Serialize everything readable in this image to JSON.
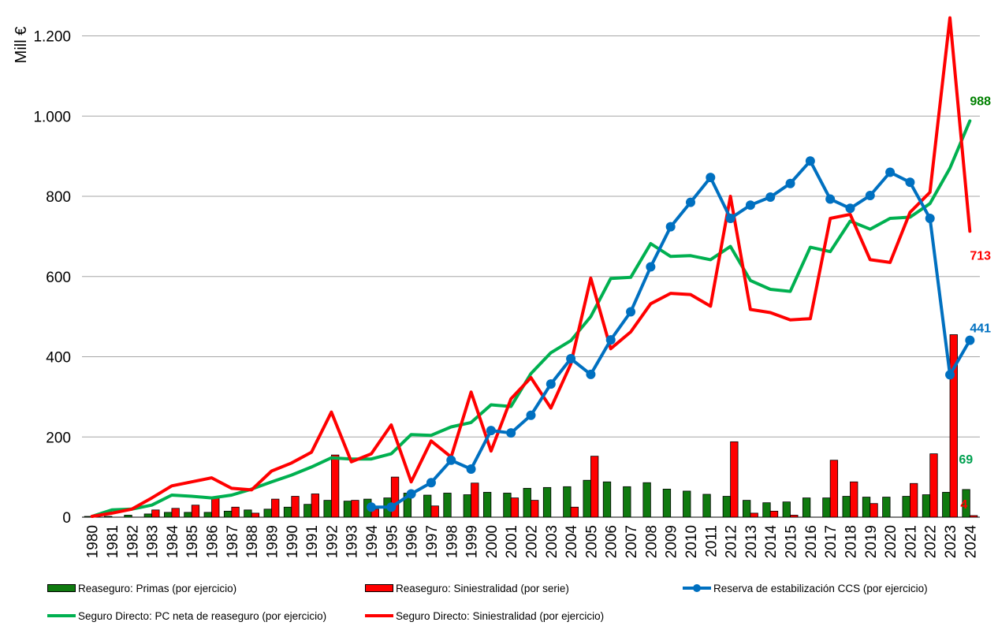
{
  "chart_data": {
    "type": "bar",
    "ylabel": "Mill €",
    "ylim": [
      0,
      1200
    ],
    "yticks": [
      {
        "value": 0,
        "label": "0"
      },
      {
        "value": 200,
        "label": "200"
      },
      {
        "value": 400,
        "label": "400"
      },
      {
        "value": 600,
        "label": "600"
      },
      {
        "value": 800,
        "label": "800"
      },
      {
        "value": 1000,
        "label": "1.000"
      },
      {
        "value": 1200,
        "label": "1.200"
      }
    ],
    "grid": true,
    "legend_position": "bottom",
    "categories": [
      "1980",
      "1981",
      "1982",
      "1983",
      "1984",
      "1985",
      "1986",
      "1987",
      "1988",
      "1989",
      "1990",
      "1991",
      "1992",
      "1993",
      "1994",
      "1995",
      "1996",
      "1997",
      "1998",
      "1999",
      "2000",
      "2001",
      "2002",
      "2003",
      "2004",
      "2005",
      "2006",
      "2007",
      "2008",
      "2009",
      "2010",
      "2011",
      "2012",
      "2013",
      "2014",
      "2015",
      "2016",
      "2017",
      "2018",
      "2019",
      "2020",
      "2021",
      "2022",
      "2023",
      "2024"
    ],
    "series": [
      {
        "name": "Reaseguro: Primas (por ejercicio)",
        "kind": "bar",
        "color": "#0f7a0f",
        "values": [
          2,
          2,
          5,
          8,
          12,
          12,
          12,
          15,
          18,
          20,
          25,
          32,
          42,
          40,
          45,
          48,
          60,
          55,
          60,
          56,
          62,
          60,
          72,
          74,
          76,
          92,
          88,
          76,
          86,
          70,
          65,
          57,
          52,
          42,
          36,
          38,
          48,
          48,
          52,
          50,
          50,
          52,
          56,
          62,
          69
        ]
      },
      {
        "name": "Reaseguro: Siniestralidad (por serie)",
        "kind": "bar",
        "color": "#ff0000",
        "values": [
          0,
          0,
          0,
          18,
          22,
          30,
          50,
          25,
          10,
          45,
          52,
          58,
          155,
          42,
          20,
          100,
          0,
          28,
          0,
          85,
          0,
          48,
          42,
          0,
          25,
          152,
          0,
          0,
          0,
          0,
          0,
          0,
          188,
          10,
          15,
          5,
          0,
          142,
          88,
          34,
          0,
          84,
          158,
          455,
          4
        ]
      },
      {
        "name": "Reserva de estabilización CCS (por ejercicio)",
        "kind": "line-markers",
        "color": "#0070c0",
        "values": [
          null,
          null,
          null,
          null,
          null,
          null,
          null,
          null,
          null,
          null,
          null,
          null,
          null,
          null,
          25,
          25,
          58,
          86,
          142,
          120,
          216,
          210,
          254,
          332,
          395,
          356,
          442,
          512,
          624,
          724,
          785,
          847,
          745,
          778,
          798,
          832,
          888,
          793,
          770,
          802,
          860,
          835,
          745,
          355,
          441
        ]
      },
      {
        "name": "Seguro Directo: PC neta de reaseguro (por ejercicio)",
        "kind": "line",
        "color": "#00b050",
        "values": [
          2,
          18,
          20,
          30,
          55,
          52,
          48,
          55,
          70,
          88,
          105,
          125,
          148,
          145,
          145,
          158,
          206,
          204,
          225,
          236,
          280,
          276,
          358,
          410,
          440,
          500,
          595,
          598,
          682,
          650,
          652,
          642,
          675,
          590,
          568,
          563,
          673,
          662,
          738,
          718,
          745,
          748,
          782,
          870,
          988
        ]
      },
      {
        "name": "Seguro Directo: Siniestralidad (por ejercicio)",
        "kind": "line",
        "color": "#ff0000",
        "values": [
          2,
          10,
          20,
          48,
          78,
          88,
          98,
          72,
          68,
          115,
          135,
          162,
          262,
          138,
          158,
          230,
          88,
          190,
          150,
          312,
          165,
          295,
          348,
          272,
          382,
          596,
          420,
          462,
          532,
          558,
          555,
          526,
          800,
          518,
          510,
          492,
          495,
          745,
          755,
          642,
          635,
          760,
          810,
          1245,
          713
        ]
      }
    ],
    "end_labels": [
      {
        "series": "Seguro Directo: PC neta de reaseguro (por ejercicio)",
        "text": "988",
        "color": "#008000"
      },
      {
        "series": "Seguro Directo: Siniestralidad (por ejercicio)",
        "text": "713",
        "color": "#ff0000"
      },
      {
        "series": "Reserva de estabilización CCS (por ejercicio)",
        "text": "441",
        "color": "#0070c0"
      },
      {
        "series": "Reaseguro: Primas (por ejercicio)",
        "text": "69",
        "color": "#00a050"
      },
      {
        "series": "Reaseguro: Siniestralidad (por serie)",
        "text": "4",
        "color": "#ff0000"
      }
    ]
  }
}
